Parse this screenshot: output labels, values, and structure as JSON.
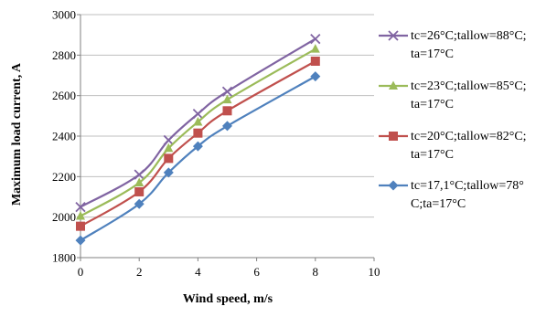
{
  "chart_data": {
    "type": "line",
    "title": "",
    "xlabel": "Wind speed, m/s",
    "ylabel": "Maximum load current, A",
    "xlim": [
      0,
      10
    ],
    "ylim": [
      1800,
      3000
    ],
    "x_ticks": [
      0,
      2,
      4,
      6,
      8,
      10
    ],
    "y_ticks": [
      1800,
      2000,
      2200,
      2400,
      2600,
      2800,
      3000
    ],
    "grid": "horizontal",
    "legend_position": "right",
    "x": [
      0,
      2,
      3,
      4,
      5,
      8
    ],
    "series": [
      {
        "name_lines": [
          "tc=26°C;tallow=88°C;",
          "ta=17°C"
        ],
        "color": "#8064A2",
        "marker": "x",
        "values": [
          2050,
          2210,
          2380,
          2510,
          2620,
          2880
        ]
      },
      {
        "name_lines": [
          "tc=23°C;tallow=85°C;",
          "ta=17°C"
        ],
        "color": "#9BBB59",
        "marker": "triangle",
        "values": [
          2005,
          2170,
          2340,
          2470,
          2580,
          2830
        ]
      },
      {
        "name_lines": [
          "tc=20°C;tallow=82°C;",
          "ta=17°C"
        ],
        "color": "#C0504D",
        "marker": "square",
        "values": [
          1955,
          2125,
          2290,
          2415,
          2525,
          2770
        ]
      },
      {
        "name_lines": [
          "tc=17,1°C;tallow=78°",
          "C;ta=17°C"
        ],
        "color": "#4F81BD",
        "marker": "diamond",
        "values": [
          1885,
          2065,
          2220,
          2350,
          2450,
          2695
        ]
      }
    ]
  }
}
